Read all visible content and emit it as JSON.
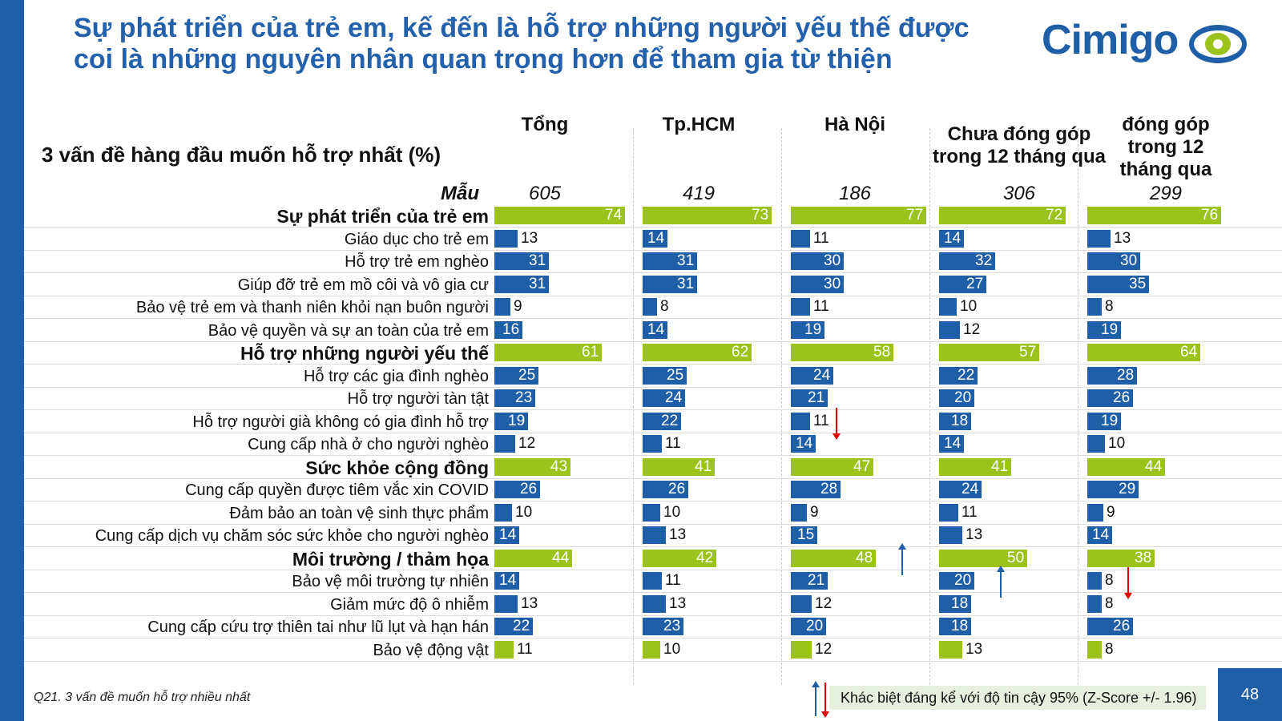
{
  "title": "Sự phát triển của trẻ em, kế đến là hỗ trợ những người yếu thế được coi là những nguyên nhân quan trọng hơn để tham gia từ thiện",
  "logo_text": "Cimigo",
  "page_number": "48",
  "footnote": "Q21. 3 vấn đề muốn hỗ trợ nhiều nhất",
  "legend_text": "Khác biệt đáng kể với độ tin cậy 95% (Z-Score +/- 1.96)",
  "colors": {
    "category_bar": "#9cc31b",
    "item_bar": "#1f5fa8",
    "accent": "#1f5fa8",
    "arrow_up": "#1f5fa8",
    "arrow_down": "#e00000"
  },
  "chart_data": {
    "type": "bar",
    "orientation": "horizontal",
    "title": "3 vấn đề hàng đầu muốn hỗ trợ nhất (%)",
    "sample_label": "Mẫu",
    "columns": [
      {
        "name": "Tổng",
        "sample": "605"
      },
      {
        "name": "Tp.HCM",
        "sample": "419"
      },
      {
        "name": "Hà Nội",
        "sample": "186"
      },
      {
        "name": "Chưa đóng góp trong 12 tháng qua",
        "sample": "306"
      },
      {
        "name": "đóng góp trong 12 tháng qua",
        "sample": "299"
      }
    ],
    "rows": [
      {
        "label": "Sự phát triển của trẻ em",
        "category": true,
        "values": [
          74,
          73,
          77,
          72,
          76
        ]
      },
      {
        "label": "Giáo dục cho trẻ em",
        "category": false,
        "values": [
          13,
          14,
          11,
          14,
          13
        ]
      },
      {
        "label": "Hỗ trợ trẻ em nghèo",
        "category": false,
        "values": [
          31,
          31,
          30,
          32,
          30
        ]
      },
      {
        "label": "Giúp đỡ trẻ em mồ côi và vô gia cư",
        "category": false,
        "values": [
          31,
          31,
          30,
          27,
          35
        ]
      },
      {
        "label": "Bảo vệ trẻ em và thanh niên khỏi nạn buôn người",
        "category": false,
        "values": [
          9,
          8,
          11,
          10,
          8
        ]
      },
      {
        "label": "Bảo vệ quyền và sự an toàn của trẻ em",
        "category": false,
        "values": [
          16,
          14,
          19,
          12,
          19
        ]
      },
      {
        "label": "Hỗ trợ những người yếu thế",
        "category": true,
        "values": [
          61,
          62,
          58,
          57,
          64
        ]
      },
      {
        "label": "Hỗ trợ các gia đình nghèo",
        "category": false,
        "values": [
          25,
          25,
          24,
          22,
          28
        ]
      },
      {
        "label": "Hỗ trợ người tàn tật",
        "category": false,
        "values": [
          23,
          24,
          21,
          20,
          26
        ]
      },
      {
        "label": "Hỗ trợ người già không có gia đình hỗ trợ",
        "category": false,
        "values": [
          19,
          22,
          11,
          18,
          19
        ]
      },
      {
        "label": "Cung cấp nhà ở cho người nghèo",
        "category": false,
        "values": [
          12,
          11,
          14,
          14,
          10
        ]
      },
      {
        "label": "Sức khỏe cộng đồng",
        "category": true,
        "values": [
          43,
          41,
          47,
          41,
          44
        ]
      },
      {
        "label": "Cung cấp quyền được tiêm vắc xin COVID",
        "category": false,
        "values": [
          26,
          26,
          28,
          24,
          29
        ]
      },
      {
        "label": "Đảm bảo an toàn vệ sinh thực phẩm",
        "category": false,
        "values": [
          10,
          10,
          9,
          11,
          9
        ]
      },
      {
        "label": "Cung cấp dịch vụ chăm sóc sức khỏe cho người nghèo",
        "category": false,
        "values": [
          14,
          13,
          15,
          13,
          14
        ]
      },
      {
        "label": "Môi trường / thảm họa",
        "category": true,
        "values": [
          44,
          42,
          48,
          50,
          38
        ]
      },
      {
        "label": "Bảo vệ môi trường tự nhiên",
        "category": false,
        "values": [
          14,
          11,
          21,
          20,
          8
        ]
      },
      {
        "label": "Giảm mức độ ô nhiễm",
        "category": false,
        "values": [
          13,
          13,
          12,
          18,
          8
        ]
      },
      {
        "label": "Cung cấp cứu trợ thiên tai như lũ lụt và hạn hán",
        "category": false,
        "values": [
          22,
          23,
          20,
          18,
          26
        ]
      },
      {
        "label": "Bảo vệ động vật",
        "category": false,
        "green": true,
        "values": [
          11,
          10,
          12,
          13,
          8
        ]
      }
    ],
    "significance_markers": [
      {
        "row": 9,
        "col": 2,
        "direction": "down"
      },
      {
        "row": 15,
        "col": 2,
        "direction": "up"
      },
      {
        "row": 16,
        "col": 3,
        "direction": "up"
      },
      {
        "row": 16,
        "col": 4,
        "direction": "down"
      }
    ]
  }
}
